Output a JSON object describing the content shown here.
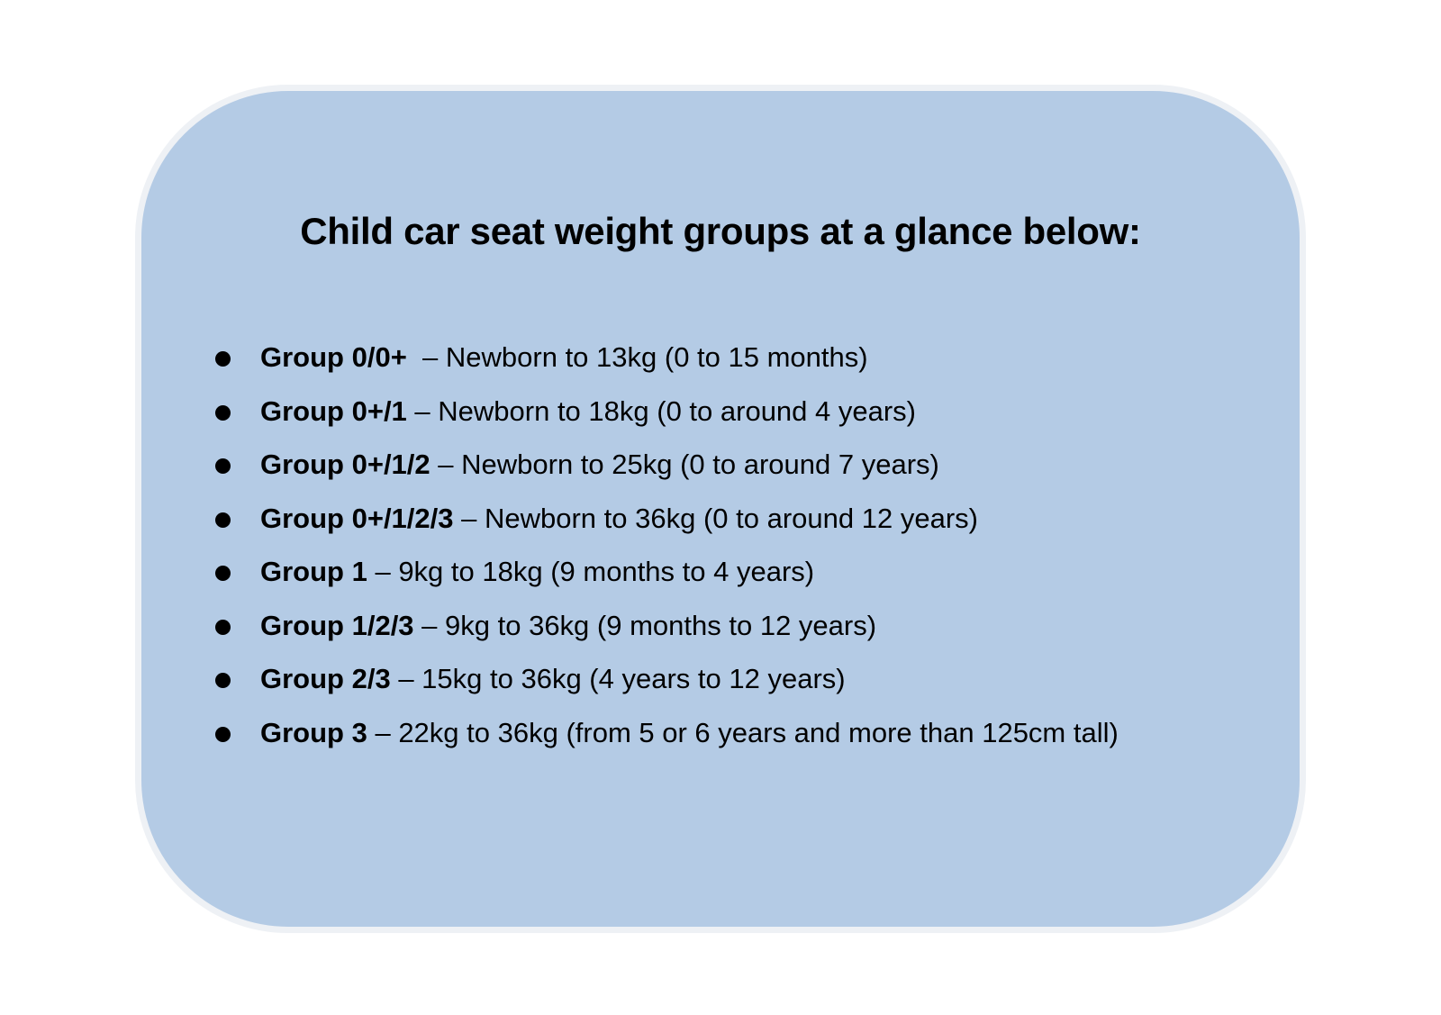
{
  "colors": {
    "card_fill": "#b4cbe5",
    "text": "#000000"
  },
  "title": "Child car seat weight groups at a glance below:",
  "items": [
    {
      "group": "Group 0/0+",
      "separator": "  – ",
      "text": "Newborn to 13kg (0 to 15 months)"
    },
    {
      "group": "Group 0+/1",
      "separator": " – ",
      "text": "Newborn to 18kg (0 to around 4 years)"
    },
    {
      "group": "Group 0+/1/2",
      "separator": " – ",
      "text": "Newborn to 25kg (0 to around 7 years)"
    },
    {
      "group": "Group 0+/1/2/3",
      "separator": " – ",
      "text": "Newborn to 36kg (0 to around 12 years)"
    },
    {
      "group": "Group 1",
      "separator": " – ",
      "text": "9kg to 18kg (9 months to 4 years)"
    },
    {
      "group": "Group 1/2/3",
      "separator": " – ",
      "text": "9kg to 36kg (9 months to 12 years)"
    },
    {
      "group": "Group 2/3",
      "separator": " – ",
      "text": "15kg to 36kg (4 years to 12 years)"
    },
    {
      "group": "Group 3",
      "separator": " – ",
      "text": "22kg to 36kg (from 5 or 6 years and more than 125cm tall)"
    }
  ]
}
